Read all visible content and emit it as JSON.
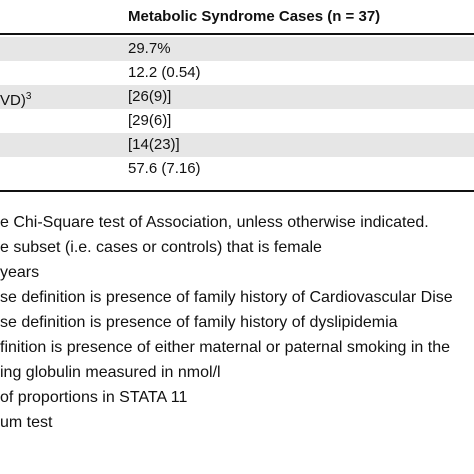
{
  "table": {
    "header": "Metabolic Syndrome Cases (n = 37)",
    "rows": [
      {
        "label": "",
        "value": "29.7%"
      },
      {
        "label": "",
        "value": "12.2 (0.54)"
      },
      {
        "label": "VD)",
        "sup": "3",
        "value": "[26(9)]"
      },
      {
        "label": "",
        "value": "[29(6)]"
      },
      {
        "label": "",
        "value": "[14(23)]"
      },
      {
        "label": "",
        "value": "57.6 (7.16)"
      }
    ]
  },
  "footnotes": [
    "e Chi-Square test of Association, unless otherwise indicated.",
    "e subset (i.e. cases or controls) that is female",
    "years",
    "se definition is presence of family history of Cardiovascular Dise",
    "se definition is presence of family history of dyslipidemia",
    "finition is presence of either maternal or paternal smoking in the",
    "ing globulin measured in nmol/l",
    "of proportions in STATA 11",
    "um test"
  ],
  "colors": {
    "row_shade": "#e6e6e6",
    "rule": "#111111"
  }
}
